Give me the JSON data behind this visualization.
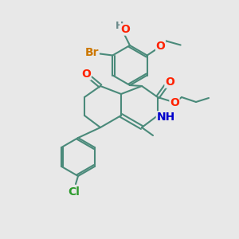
{
  "bg_color": "#e8e8e8",
  "bond_color": "#4a8a7a",
  "atom_colors": {
    "O": "#ff2200",
    "N": "#0000cc",
    "Br": "#cc7700",
    "Cl": "#2a9a2a",
    "H_label": "#6a8a8a",
    "C_default": "#4a8a7a"
  },
  "font_size_atom": 10,
  "figsize": [
    3.0,
    3.0
  ],
  "dpi": 100
}
